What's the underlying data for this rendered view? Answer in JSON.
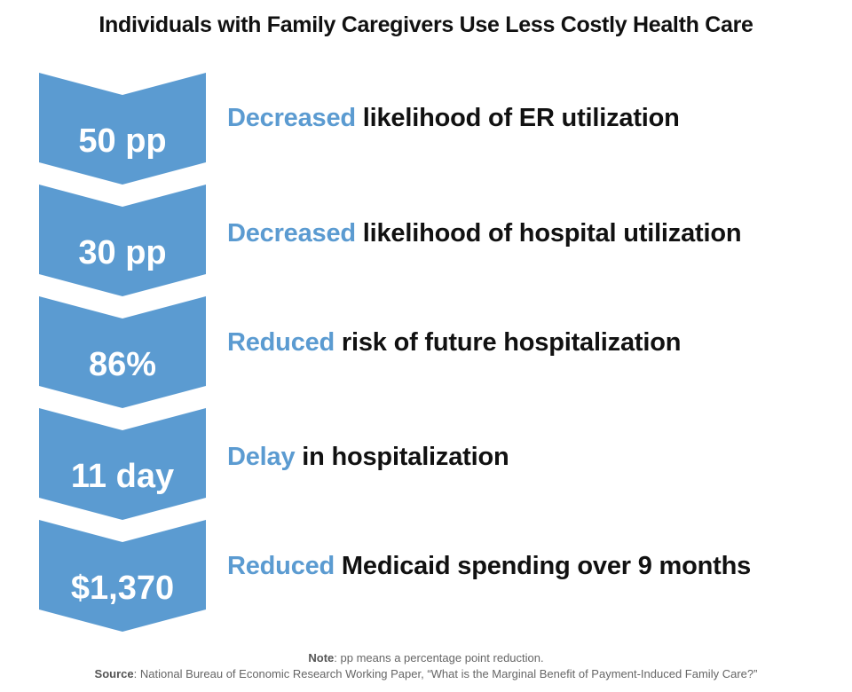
{
  "title": "Individuals with Family Caregivers Use Less Costly Health Care",
  "accent_color": "#5b9bd1",
  "items": [
    {
      "value": "50 pp",
      "highlight": "Decreased",
      "text": " likelihood of ER utilization"
    },
    {
      "value": "30 pp",
      "highlight": "Decreased",
      "text": " likelihood of hospital utilization"
    },
    {
      "value": "86%",
      "highlight": "Reduced",
      "text": " risk of future hospitalization"
    },
    {
      "value": "11 day",
      "highlight": "Delay",
      "text": " in hospitalization"
    },
    {
      "value": "$1,370",
      "highlight": "Reduced",
      "text": " Medicaid spending over 9 months"
    }
  ],
  "footer": {
    "note_label": "Note",
    "note_text": ": pp means a percentage point reduction.",
    "source_label": "Source",
    "source_text": ": National Bureau of Economic Research Working Paper, “What is the Marginal Benefit of Payment-Induced Family Care?”"
  }
}
